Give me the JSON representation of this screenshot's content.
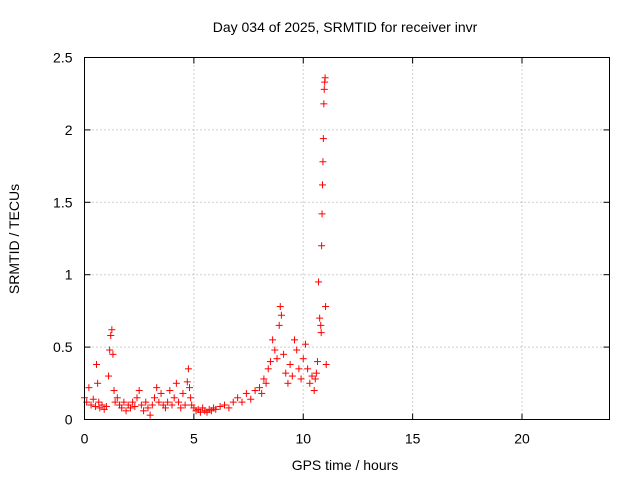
{
  "chart_data": {
    "type": "scatter",
    "title": "Day 034 of 2025, SRMTID for receiver invr",
    "xlabel": "GPS time / hours",
    "ylabel": "SRMTID / TECUs",
    "xlim": [
      0,
      24
    ],
    "ylim": [
      0,
      2.5
    ],
    "xticks": [
      0,
      5,
      10,
      15,
      20
    ],
    "yticks": [
      0,
      0.5,
      1,
      1.5,
      2,
      2.5
    ],
    "xtick_labels": [
      "0",
      "5",
      "10",
      "15",
      "20"
    ],
    "ytick_labels": [
      "0",
      "0.5",
      "1",
      "1.5",
      "2",
      "2.5"
    ],
    "grid": true,
    "marker": "+",
    "color": "#ff0000",
    "series": [
      {
        "name": "SRMTID",
        "x": [
          0.0,
          0.1,
          0.2,
          0.3,
          0.4,
          0.5,
          0.55,
          0.6,
          0.65,
          0.7,
          0.8,
          0.9,
          1.0,
          1.1,
          1.15,
          1.2,
          1.25,
          1.3,
          1.35,
          1.4,
          1.5,
          1.6,
          1.7,
          1.8,
          1.9,
          2.0,
          2.1,
          2.2,
          2.3,
          2.4,
          2.5,
          2.6,
          2.7,
          2.8,
          2.9,
          3.0,
          3.1,
          3.2,
          3.3,
          3.4,
          3.5,
          3.6,
          3.7,
          3.8,
          3.9,
          4.0,
          4.1,
          4.2,
          4.3,
          4.4,
          4.5,
          4.6,
          4.7,
          4.75,
          4.8,
          4.85,
          4.9,
          5.0,
          5.1,
          5.2,
          5.3,
          5.4,
          5.5,
          5.6,
          5.7,
          5.8,
          5.9,
          6.0,
          6.2,
          6.4,
          6.6,
          6.8,
          7.0,
          7.2,
          7.4,
          7.6,
          7.8,
          8.0,
          8.1,
          8.2,
          8.3,
          8.4,
          8.5,
          8.6,
          8.7,
          8.8,
          8.9,
          8.95,
          9.0,
          9.1,
          9.2,
          9.3,
          9.4,
          9.5,
          9.6,
          9.7,
          9.8,
          9.9,
          10.0,
          10.1,
          10.2,
          10.3,
          10.4,
          10.5,
          10.55,
          10.6,
          10.65,
          10.7,
          10.75,
          10.8,
          10.82,
          10.84,
          10.86,
          10.88,
          10.9,
          10.92,
          10.94,
          10.96,
          10.98,
          11.0,
          11.02,
          11.05
        ],
        "y": [
          0.15,
          0.12,
          0.22,
          0.1,
          0.14,
          0.09,
          0.38,
          0.25,
          0.12,
          0.08,
          0.1,
          0.07,
          0.09,
          0.3,
          0.48,
          0.58,
          0.62,
          0.45,
          0.2,
          0.12,
          0.15,
          0.1,
          0.08,
          0.12,
          0.06,
          0.1,
          0.08,
          0.12,
          0.09,
          0.15,
          0.2,
          0.1,
          0.06,
          0.12,
          0.08,
          0.03,
          0.1,
          0.15,
          0.22,
          0.12,
          0.18,
          0.1,
          0.08,
          0.12,
          0.2,
          0.1,
          0.15,
          0.25,
          0.12,
          0.08,
          0.18,
          0.1,
          0.26,
          0.35,
          0.22,
          0.15,
          0.1,
          0.08,
          0.06,
          0.07,
          0.05,
          0.08,
          0.06,
          0.05,
          0.07,
          0.06,
          0.08,
          0.07,
          0.09,
          0.1,
          0.08,
          0.12,
          0.15,
          0.12,
          0.18,
          0.14,
          0.2,
          0.22,
          0.18,
          0.28,
          0.25,
          0.35,
          0.4,
          0.55,
          0.48,
          0.42,
          0.65,
          0.78,
          0.72,
          0.45,
          0.32,
          0.25,
          0.38,
          0.3,
          0.55,
          0.48,
          0.35,
          0.28,
          0.42,
          0.52,
          0.35,
          0.25,
          0.3,
          0.2,
          0.28,
          0.32,
          0.4,
          0.95,
          0.7,
          0.65,
          0.6,
          1.2,
          1.42,
          1.62,
          1.78,
          1.94,
          2.18,
          2.28,
          2.33,
          2.36,
          0.78,
          0.38
        ]
      }
    ]
  }
}
